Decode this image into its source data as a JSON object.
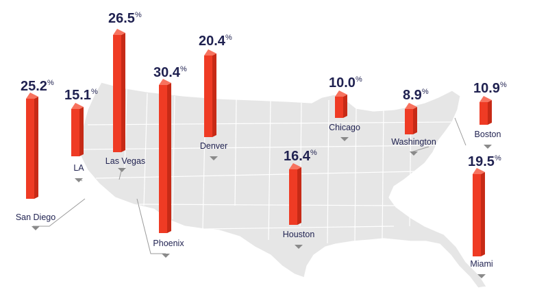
{
  "colors": {
    "bar_front": "#ef3b24",
    "bar_side": "#c72a16",
    "bar_top": "#f7735f",
    "map_fill": "#e6e6e6",
    "map_lines": "#ffffff",
    "text": "#1f2150",
    "marker": "#8a8a8a",
    "leader": "#9a9a9a"
  },
  "cities": [
    {
      "name": "San Diego",
      "value": "25.2",
      "unit": "%"
    },
    {
      "name": "LA",
      "value": "15.1",
      "unit": "%"
    },
    {
      "name": "Las Vegas",
      "value": "26.5",
      "unit": "%"
    },
    {
      "name": "Phoenix",
      "value": "30.4",
      "unit": "%"
    },
    {
      "name": "Denver",
      "value": "20.4",
      "unit": "%"
    },
    {
      "name": "Houston",
      "value": "16.4",
      "unit": "%"
    },
    {
      "name": "Chicago",
      "value": "10.0",
      "unit": "%"
    },
    {
      "name": "Washington",
      "value": "8.9",
      "unit": "%"
    },
    {
      "name": "Boston",
      "value": "10.9",
      "unit": "%"
    },
    {
      "name": "Miami",
      "value": "19.5",
      "unit": "%"
    }
  ]
}
